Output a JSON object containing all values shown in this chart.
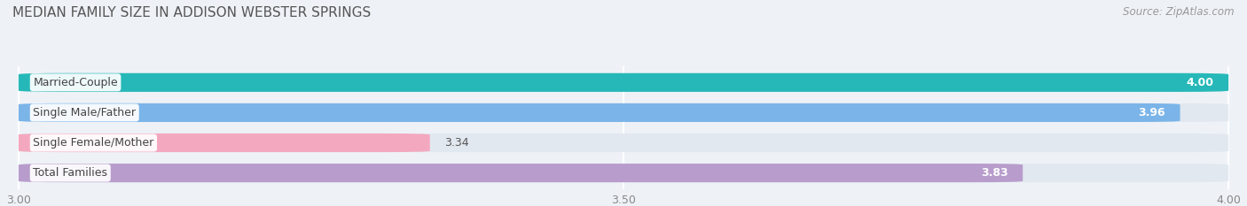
{
  "title": "MEDIAN FAMILY SIZE IN ADDISON WEBSTER SPRINGS",
  "source": "Source: ZipAtlas.com",
  "categories": [
    "Married-Couple",
    "Single Male/Father",
    "Single Female/Mother",
    "Total Families"
  ],
  "values": [
    4.0,
    3.96,
    3.34,
    3.83
  ],
  "value_labels": [
    "4.00",
    "3.96",
    "3.34",
    "3.83"
  ],
  "bar_colors": [
    "#26b8b8",
    "#7ab4e8",
    "#f4a8c0",
    "#b89dcc"
  ],
  "label_inside": [
    true,
    true,
    false,
    true
  ],
  "x_min": 3.0,
  "x_max": 4.0,
  "x_ticks": [
    3.0,
    3.5,
    4.0
  ],
  "x_tick_labels": [
    "3.00",
    "3.50",
    "4.00"
  ],
  "background_color": "#eef2f7",
  "bar_background": "#e2e8f0",
  "bar_height": 0.62,
  "bar_gap": 1.0,
  "title_fontsize": 11,
  "source_fontsize": 8.5,
  "label_fontsize": 9,
  "value_fontsize": 9,
  "tick_fontsize": 9
}
